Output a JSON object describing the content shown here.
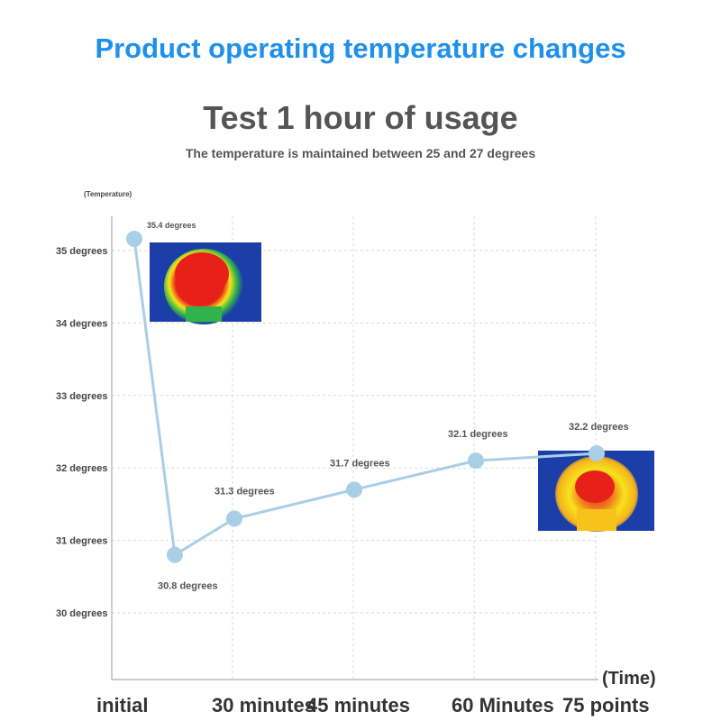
{
  "header": {
    "headline": "Product operating temperature changes",
    "title": "Test 1 hour of usage",
    "subtitle": "The temperature is maintained between 25 and 27 degrees"
  },
  "chart_data": {
    "type": "line",
    "ylabel": "(Temperature)",
    "xlabel": "(Time)",
    "yticks": [
      {
        "value": 35,
        "label": "35 degrees"
      },
      {
        "value": 34,
        "label": "34 degrees"
      },
      {
        "value": 33,
        "label": "33 degrees"
      },
      {
        "value": 32,
        "label": "32 degrees"
      },
      {
        "value": 31,
        "label": "31 degrees"
      },
      {
        "value": 30,
        "label": "30 degrees"
      }
    ],
    "xticks": [
      {
        "value": 0,
        "label": "initial"
      },
      {
        "value": 30,
        "label": "30 minutes"
      },
      {
        "value": 45,
        "label": "45 minutes"
      },
      {
        "value": 60,
        "label": "60 Minutes"
      },
      {
        "value": 75,
        "label": "75 points"
      }
    ],
    "ylim": [
      29.1,
      35.3
    ],
    "grid": true,
    "points": [
      {
        "x": 0,
        "y": 35.4,
        "label": "35.4 degrees"
      },
      {
        "x": 15,
        "y": 30.8,
        "label": "30.8 degrees"
      },
      {
        "x": 30,
        "y": 31.3,
        "label": "31.3 degrees"
      },
      {
        "x": 45,
        "y": 31.7,
        "label": "31.7 degrees"
      },
      {
        "x": 60,
        "y": 32.1,
        "label": "32.1 degrees"
      },
      {
        "x": 75,
        "y": 32.2,
        "label": "32.2 degrees"
      }
    ],
    "colors": {
      "line": "#a9cfe6",
      "marker": "#a9cfe6",
      "grid": "#d9d9d9",
      "axis": "#bbbbbb"
    }
  },
  "images": [
    {
      "name": "thermal-image-initial",
      "description": "thermal camera image of head, mostly red"
    },
    {
      "name": "thermal-image-end",
      "description": "thermal camera image of head, red and yellow"
    }
  ]
}
